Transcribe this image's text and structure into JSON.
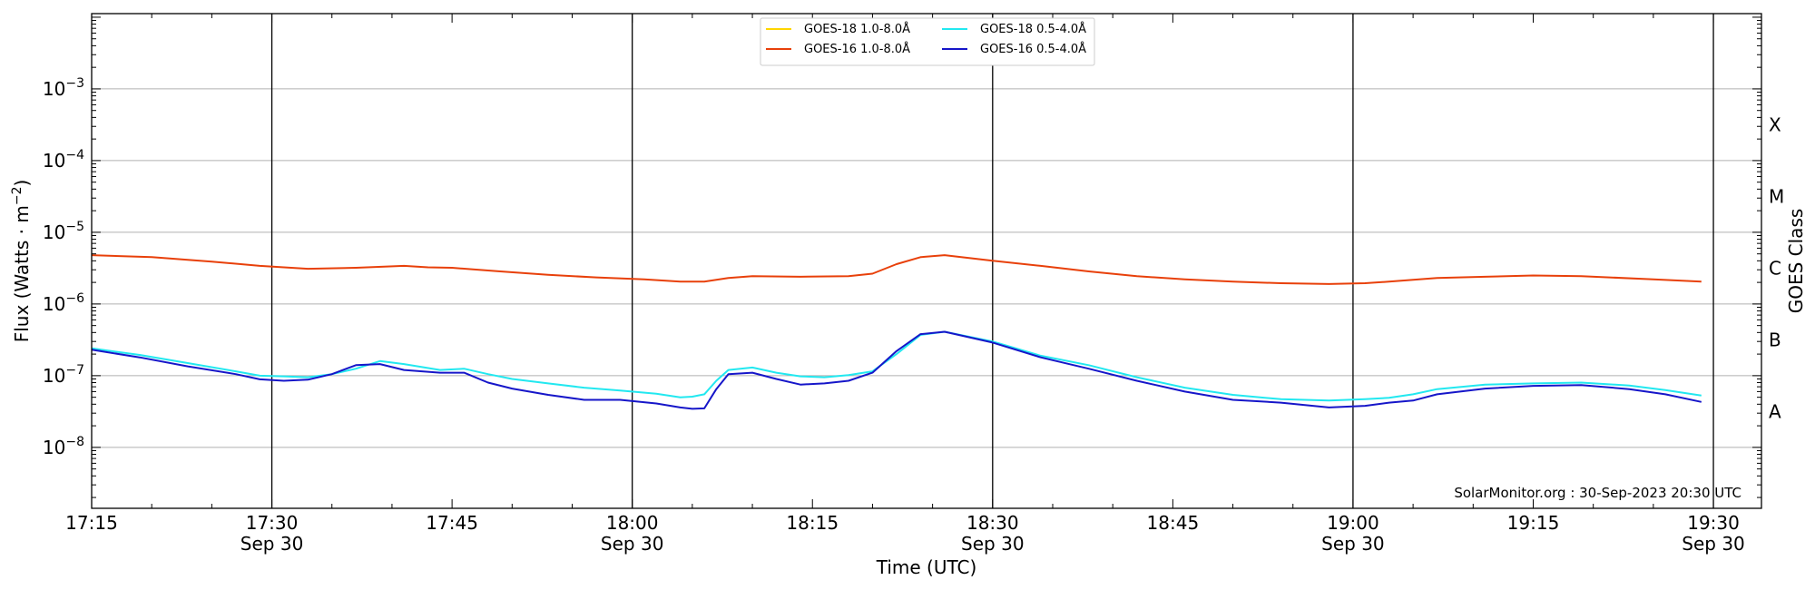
{
  "chart_data": {
    "type": "line",
    "xlabel": "Time (UTC)",
    "ylabel": "Flux (Watts · m",
    "ylabel_sup": "−2",
    "ylabel_close": ")",
    "right_label": "GOES Class",
    "credit": "SolarMonitor.org : 30-Sep-2023 20:30 UTC",
    "x_unit": "minutes after 17:15 UTC, 30 Sep 2023",
    "xlim": [
      0,
      139
    ],
    "ylim_log10": [
      -8.85,
      -1.95
    ],
    "y_scale": "log",
    "grid": "horizontal at decades",
    "x_ticks": [
      {
        "t": 0,
        "label": "17:15",
        "date": ""
      },
      {
        "t": 15,
        "label": "17:30",
        "date": "Sep 30"
      },
      {
        "t": 30,
        "label": "17:45",
        "date": ""
      },
      {
        "t": 45,
        "label": "18:00",
        "date": "Sep 30"
      },
      {
        "t": 60,
        "label": "18:15",
        "date": ""
      },
      {
        "t": 75,
        "label": "18:30",
        "date": "Sep 30"
      },
      {
        "t": 90,
        "label": "18:45",
        "date": ""
      },
      {
        "t": 105,
        "label": "19:00",
        "date": "Sep 30"
      },
      {
        "t": 120,
        "label": "19:15",
        "date": ""
      },
      {
        "t": 135,
        "label": "19:30",
        "date": "Sep 30"
      }
    ],
    "day_lines_t": [
      15,
      45,
      75,
      105,
      135
    ],
    "y_ticks": [
      {
        "exp": -8,
        "label": "10",
        "sup": "−8"
      },
      {
        "exp": -7,
        "label": "10",
        "sup": "−7"
      },
      {
        "exp": -6,
        "label": "10",
        "sup": "−6"
      },
      {
        "exp": -5,
        "label": "10",
        "sup": "−5"
      },
      {
        "exp": -4,
        "label": "10",
        "sup": "−4"
      },
      {
        "exp": -3,
        "label": "10",
        "sup": "−3"
      }
    ],
    "classes": [
      {
        "label": "A",
        "exp": -7.5
      },
      {
        "label": "B",
        "exp": -6.5
      },
      {
        "label": "C",
        "exp": -5.5
      },
      {
        "label": "M",
        "exp": -4.5
      },
      {
        "label": "X",
        "exp": -3.5
      }
    ],
    "legend_position": "top-center",
    "series": [
      {
        "name": "GOES-18 1.0-8.0Å",
        "color": "#ffd500",
        "t": [],
        "flux": []
      },
      {
        "name": "GOES-16 1.0-8.0Å",
        "color": "#e8400a",
        "t": [
          0,
          5,
          10,
          14,
          18,
          22,
          26,
          28,
          30,
          34,
          38,
          42,
          46,
          49,
          51,
          53,
          55,
          59,
          63,
          65,
          67,
          69,
          71,
          75,
          79,
          83,
          87,
          91,
          95,
          99,
          103,
          106,
          108,
          112,
          116,
          120,
          124,
          130,
          134
        ],
        "flux": [
          4.8e-06,
          4.5e-06,
          3.9e-06,
          3.4e-06,
          3.1e-06,
          3.2e-06,
          3.4e-06,
          3.25e-06,
          3.2e-06,
          2.85e-06,
          2.55e-06,
          2.35e-06,
          2.2e-06,
          2.05e-06,
          2.05e-06,
          2.3e-06,
          2.45e-06,
          2.4e-06,
          2.45e-06,
          2.65e-06,
          3.6e-06,
          4.5e-06,
          4.8e-06,
          4e-06,
          3.4e-06,
          2.85e-06,
          2.45e-06,
          2.2e-06,
          2.05e-06,
          1.95e-06,
          1.9e-06,
          1.95e-06,
          2.05e-06,
          2.3e-06,
          2.4e-06,
          2.5e-06,
          2.45e-06,
          2.2e-06,
          2.05e-06
        ]
      },
      {
        "name": "GOES-18 0.5-4.0Å",
        "color": "#22e8f0",
        "t": [
          0,
          4,
          8,
          12,
          14,
          16,
          18,
          20,
          22,
          24,
          26,
          29,
          31,
          33,
          35,
          38,
          41,
          44,
          47,
          49,
          50,
          51,
          52,
          53,
          55,
          57,
          59,
          61,
          63,
          65,
          67,
          69,
          71,
          75,
          79,
          83,
          87,
          91,
          95,
          99,
          103,
          106,
          108,
          110,
          112,
          116,
          120,
          124,
          128,
          131,
          134
        ],
        "flux": [
          2.4e-07,
          1.95e-07,
          1.5e-07,
          1.15e-07,
          1e-07,
          9.8e-08,
          9.5e-08,
          1.05e-07,
          1.25e-07,
          1.6e-07,
          1.45e-07,
          1.2e-07,
          1.25e-07,
          1.05e-07,
          9e-08,
          7.8e-08,
          6.8e-08,
          6.2e-08,
          5.6e-08,
          5e-08,
          5.1e-08,
          5.5e-08,
          8.5e-08,
          1.2e-07,
          1.3e-07,
          1.1e-07,
          9.8e-08,
          9.5e-08,
          1.02e-07,
          1.15e-07,
          2e-07,
          3.7e-07,
          4.1e-07,
          3e-07,
          1.9e-07,
          1.4e-07,
          9.5e-08,
          6.8e-08,
          5.4e-08,
          4.7e-08,
          4.5e-08,
          4.7e-08,
          4.9e-08,
          5.5e-08,
          6.5e-08,
          7.5e-08,
          7.8e-08,
          8e-08,
          7.3e-08,
          6.3e-08,
          5.3e-08
        ]
      },
      {
        "name": "GOES-16 0.5-4.0Å",
        "color": "#1616c9",
        "t": [
          0,
          4,
          8,
          12,
          14,
          16,
          18,
          20,
          22,
          24,
          26,
          29,
          31,
          33,
          35,
          38,
          41,
          44,
          47,
          49,
          50,
          51,
          52,
          53,
          55,
          57,
          59,
          61,
          63,
          65,
          67,
          69,
          71,
          75,
          79,
          83,
          87,
          91,
          95,
          99,
          103,
          106,
          108,
          110,
          112,
          116,
          120,
          124,
          128,
          131,
          134
        ],
        "flux": [
          2.3e-07,
          1.8e-07,
          1.35e-07,
          1.05e-07,
          8.9e-08,
          8.5e-08,
          8.8e-08,
          1.05e-07,
          1.4e-07,
          1.45e-07,
          1.2e-07,
          1.1e-07,
          1.1e-07,
          8e-08,
          6.6e-08,
          5.4e-08,
          4.6e-08,
          4.6e-08,
          4.1e-08,
          3.6e-08,
          3.45e-08,
          3.5e-08,
          6.5e-08,
          1.05e-07,
          1.1e-07,
          9e-08,
          7.5e-08,
          7.8e-08,
          8.5e-08,
          1.1e-07,
          2.2e-07,
          3.8e-07,
          4.1e-07,
          2.9e-07,
          1.8e-07,
          1.25e-07,
          8.5e-08,
          6e-08,
          4.6e-08,
          4.2e-08,
          3.6e-08,
          3.8e-08,
          4.2e-08,
          4.5e-08,
          5.5e-08,
          6.6e-08,
          7.2e-08,
          7.4e-08,
          6.5e-08,
          5.5e-08,
          4.3e-08
        ]
      }
    ]
  }
}
